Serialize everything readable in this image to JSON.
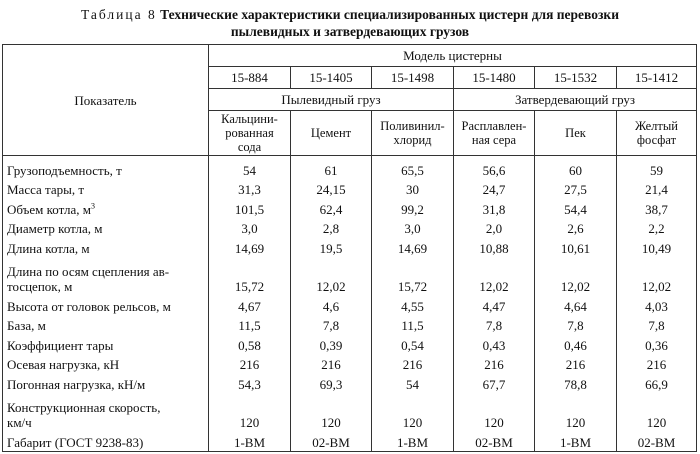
{
  "title": {
    "label": "Таблица 8",
    "text": "Технические характеристики специализированных цистерн для перевозки",
    "text2": "пылевидных и затвердевающих грузов"
  },
  "header": {
    "indicator": "Показатель",
    "model_group": "Модель цистерны",
    "models": [
      "15-884",
      "15-1405",
      "15-1498",
      "15-1480",
      "15-1532",
      "15-1412"
    ],
    "cargo_groups": [
      "Пылевидный груз",
      "Затвердевающий груз"
    ],
    "cargo_names": [
      "Кальцини-\nрованная\nсода",
      "Цемент",
      "Поливинил-\nхлорид",
      "Расплавлен-\nная сера",
      "Пек",
      "Желтый\nфосфат"
    ]
  },
  "rows": [
    {
      "name": "Грузоподъемность, т",
      "values": [
        "54",
        "61",
        "65,5",
        "56,6",
        "60",
        "59"
      ]
    },
    {
      "name": "Масса тары, т",
      "values": [
        "31,3",
        "24,15",
        "30",
        "24,7",
        "27,5",
        "21,4"
      ]
    },
    {
      "name": "Объем котла, м",
      "sup": "3",
      "values": [
        "101,5",
        "62,4",
        "99,2",
        "31,8",
        "54,4",
        "38,7"
      ]
    },
    {
      "name": "Диаметр котла, м",
      "values": [
        "3,0",
        "2,8",
        "3,0",
        "2,0",
        "2,6",
        "2,2"
      ]
    },
    {
      "name": "Длина котла, м",
      "values": [
        "14,69",
        "19,5",
        "14,69",
        "10,88",
        "10,61",
        "10,49"
      ]
    },
    {
      "name": "Длина по осям сцепления ав-\nтосцепок, м",
      "values": [
        "15,72",
        "12,02",
        "15,72",
        "12,02",
        "12,02",
        "12,02"
      ]
    },
    {
      "name": "Высота от головок рельсов, м",
      "values": [
        "4,67",
        "4,6",
        "4,55",
        "4,47",
        "4,64",
        "4,03"
      ]
    },
    {
      "name": "База, м",
      "values": [
        "11,5",
        "7,8",
        "11,5",
        "7,8",
        "7,8",
        "7,8"
      ]
    },
    {
      "name": "Коэффициент тары",
      "values": [
        "0,58",
        "0,39",
        "0,54",
        "0,43",
        "0,46",
        "0,36"
      ]
    },
    {
      "name": "Осевая нагрузка, кН",
      "values": [
        "216",
        "216",
        "216",
        "216",
        "216",
        "216"
      ]
    },
    {
      "name": "Погонная нагрузка, кН/м",
      "values": [
        "54,3",
        "69,3",
        "54",
        "67,7",
        "78,8",
        "66,9"
      ]
    },
    {
      "name": "Конструкционная скорость,\nкм/ч",
      "values": [
        "120",
        "120",
        "120",
        "120",
        "120",
        "120"
      ]
    },
    {
      "name": "Габарит (ГОСТ 9238-83)",
      "values": [
        "1-ВМ",
        "02-ВМ",
        "1-ВМ",
        "02-ВМ",
        "1-ВМ",
        "02-ВМ"
      ]
    }
  ]
}
